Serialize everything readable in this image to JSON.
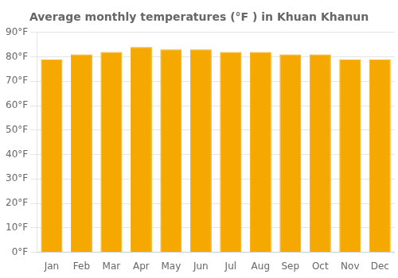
{
  "chart_data": {
    "type": "bar",
    "title": "Average monthly temperatures (°F ) in Khuan Khanun",
    "categories": [
      "Jan",
      "Feb",
      "Mar",
      "Apr",
      "May",
      "Jun",
      "Jul",
      "Aug",
      "Sep",
      "Oct",
      "Nov",
      "Dec"
    ],
    "values": [
      79,
      81,
      82,
      84,
      83,
      83,
      82,
      82,
      81,
      81,
      79,
      79
    ],
    "color": "#F5A800",
    "ylim": [
      0,
      90
    ],
    "yticks": [
      {
        "value": 0,
        "label": "0°F"
      },
      {
        "value": 10,
        "label": "10°F"
      },
      {
        "value": 20,
        "label": "20°F"
      },
      {
        "value": 30,
        "label": "30°F"
      },
      {
        "value": 40,
        "label": "40°F"
      },
      {
        "value": 50,
        "label": "50°F"
      },
      {
        "value": 60,
        "label": "60°F"
      },
      {
        "value": 70,
        "label": "70°F"
      },
      {
        "value": 80,
        "label": "80°F"
      },
      {
        "value": 90,
        "label": "90°F"
      }
    ],
    "grid": true
  }
}
